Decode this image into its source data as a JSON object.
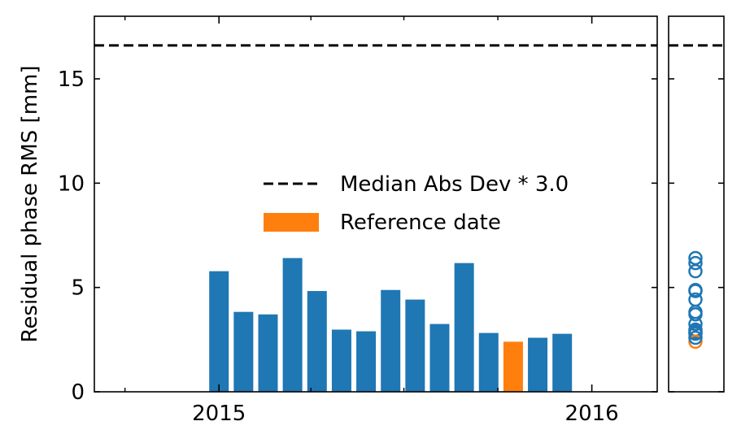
{
  "chart_data": {
    "type": "bar",
    "ylabel": "Residual phase RMS [mm]",
    "ylim": [
      0,
      18
    ],
    "yticks": [
      0,
      5,
      10,
      15
    ],
    "xticks": [
      {
        "date": "2015-01-01",
        "label": "2015"
      },
      {
        "date": "2016-01-01",
        "label": "2016"
      }
    ],
    "xlim": [
      "2014-09-01",
      "2016-03-05"
    ],
    "dates": [
      "2015-01-01",
      "2015-01-25",
      "2015-02-18",
      "2015-03-14",
      "2015-04-07",
      "2015-05-01",
      "2015-05-25",
      "2015-06-18",
      "2015-07-12",
      "2015-08-05",
      "2015-08-29",
      "2015-09-22",
      "2015-10-16",
      "2015-11-09",
      "2015-12-03"
    ],
    "values": [
      5.78,
      3.83,
      3.71,
      6.41,
      4.83,
      2.98,
      2.9,
      4.88,
      4.42,
      3.25,
      6.17,
      2.82,
      2.4,
      2.59,
      2.78
    ],
    "reference_date": "2015-10-16",
    "threshold": {
      "value": 16.6,
      "label": "Median Abs Dev * 3.0"
    },
    "legend": {
      "position": "center",
      "entries": [
        "Median Abs Dev * 3.0",
        "Reference date"
      ]
    },
    "colors": {
      "bar": "#1f77b4",
      "reference": "#ff7f0e",
      "threshold": "#000000"
    }
  }
}
